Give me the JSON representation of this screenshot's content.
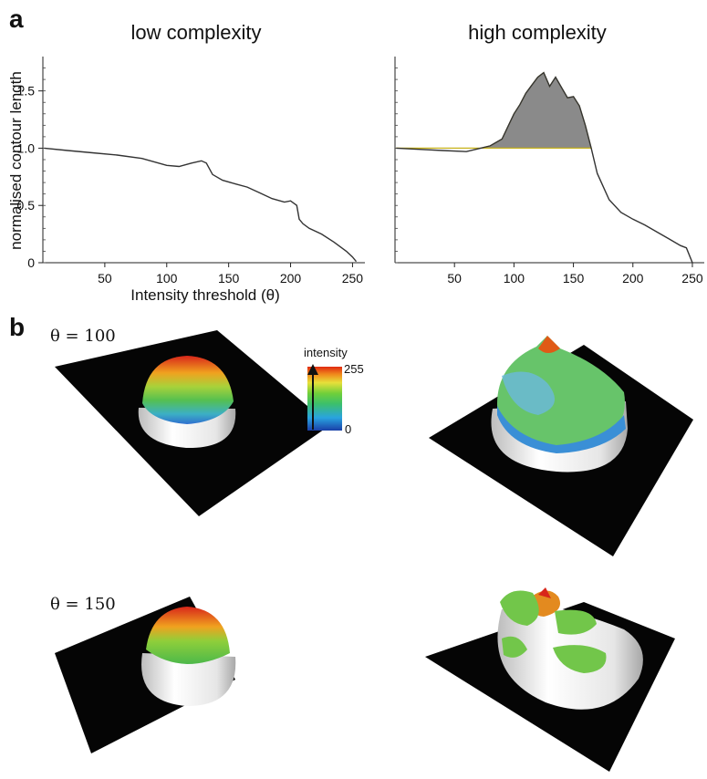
{
  "panel_a_label": "a",
  "panel_b_label": "b",
  "chart_data": [
    {
      "type": "line",
      "title": "low complexity",
      "xlabel": "Intensity threshold (θ)",
      "ylabel": "normalised contour length",
      "xlim": [
        0,
        260
      ],
      "ylim": [
        0,
        1.8
      ],
      "xticks": [
        50,
        100,
        150,
        200,
        250
      ],
      "yticks": [
        0,
        0.5,
        1.0,
        1.5
      ],
      "ytick_labels": [
        "0",
        "0.5",
        "1.0",
        "1.5"
      ],
      "x": [
        1,
        20,
        40,
        60,
        80,
        100,
        110,
        120,
        128,
        132,
        137,
        145,
        155,
        165,
        175,
        185,
        195,
        200,
        205,
        207,
        210,
        215,
        225,
        235,
        245,
        250,
        253
      ],
      "y": [
        1.0,
        0.98,
        0.96,
        0.94,
        0.91,
        0.85,
        0.84,
        0.87,
        0.89,
        0.87,
        0.77,
        0.72,
        0.69,
        0.66,
        0.61,
        0.56,
        0.53,
        0.54,
        0.5,
        0.38,
        0.34,
        0.3,
        0.25,
        0.18,
        0.1,
        0.05,
        0.01
      ]
    },
    {
      "type": "line",
      "title": "high complexity",
      "xlim": [
        0,
        260
      ],
      "ylim": [
        0,
        1.8
      ],
      "xticks": [
        50,
        100,
        150,
        200,
        250
      ],
      "shaded_above_y": 1.0,
      "x": [
        1,
        20,
        40,
        60,
        72,
        80,
        90,
        100,
        105,
        110,
        115,
        120,
        125,
        130,
        135,
        140,
        145,
        150,
        155,
        160,
        165,
        170,
        180,
        190,
        200,
        210,
        220,
        230,
        240,
        245,
        250
      ],
      "y": [
        1.0,
        0.99,
        0.98,
        0.97,
        1.0,
        1.02,
        1.08,
        1.3,
        1.38,
        1.48,
        1.55,
        1.62,
        1.66,
        1.54,
        1.62,
        1.53,
        1.44,
        1.45,
        1.37,
        1.2,
        1.0,
        0.78,
        0.55,
        0.44,
        0.38,
        0.33,
        0.27,
        0.21,
        0.15,
        0.13,
        0.0
      ]
    }
  ],
  "panel_b": {
    "rows": [
      {
        "theta_label": "θ = 100"
      },
      {
        "theta_label": "θ = 150"
      }
    ],
    "colorbar": {
      "title": "intensity",
      "max_label": "255",
      "min_label": "0"
    }
  }
}
